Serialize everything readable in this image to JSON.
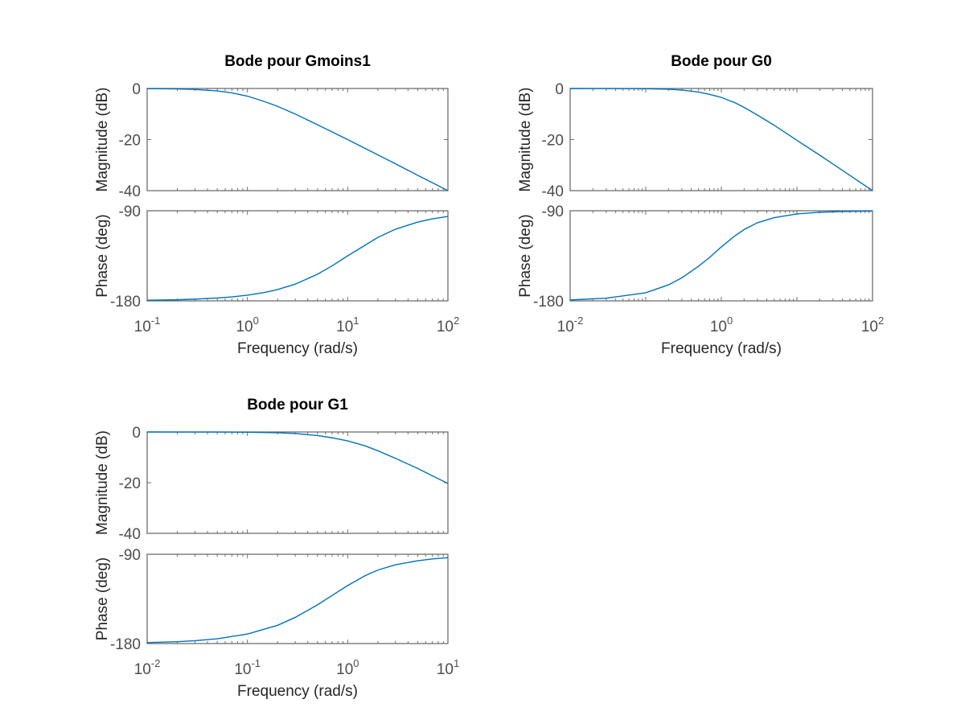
{
  "figure": {
    "background": "#ffffff",
    "axis_color": "#6e6e6e",
    "line_color": "#0072bd"
  },
  "chart_data": [
    {
      "type": "line",
      "title": "Bode pour Gmoins1",
      "xlabel": "Frequency  (rad/s)",
      "xscale": "log",
      "xlim": [
        0.1,
        100
      ],
      "xticks": [
        {
          "base": "10",
          "exp": "-1"
        },
        {
          "base": "10",
          "exp": "0"
        },
        {
          "base": "10",
          "exp": "1"
        },
        {
          "base": "10",
          "exp": "2"
        }
      ],
      "magnitude": {
        "ylabel": "Magnitude (dB)",
        "ylim": [
          -40,
          0
        ],
        "yticks": [
          "0",
          "-20",
          "-40"
        ],
        "x": [
          0.1,
          0.2,
          0.3,
          0.5,
          0.7,
          1,
          1.5,
          2,
          3,
          5,
          7,
          10,
          20,
          30,
          50,
          70,
          100
        ],
        "y": [
          -0.04,
          -0.17,
          -0.37,
          -0.97,
          -1.73,
          -3.0,
          -5.2,
          -7.0,
          -10.0,
          -14.2,
          -17.0,
          -20.0,
          -26.0,
          -29.5,
          -34.0,
          -36.9,
          -40.0
        ]
      },
      "phase": {
        "ylabel": "Phase (deg)",
        "ylim": [
          -180,
          -90
        ],
        "yticks": [
          "-90",
          "-180"
        ],
        "x": [
          0.1,
          0.2,
          0.3,
          0.5,
          0.7,
          1,
          1.5,
          2,
          3,
          5,
          7,
          10,
          20,
          30,
          50,
          70,
          100
        ],
        "y": [
          -179.4,
          -178.9,
          -178.3,
          -177.1,
          -176.0,
          -174.3,
          -171.5,
          -168.7,
          -163.3,
          -153.4,
          -145.0,
          -135.0,
          -116.6,
          -108.4,
          -101.3,
          -98.1,
          -95.7
        ]
      }
    },
    {
      "type": "line",
      "title": "Bode pour G0",
      "xlabel": "Frequency  (rad/s)",
      "xscale": "log",
      "xlim": [
        0.01,
        100
      ],
      "xticks": [
        {
          "base": "10",
          "exp": "-2"
        },
        {
          "base": "10",
          "exp": "0"
        },
        {
          "base": "10",
          "exp": "2"
        }
      ],
      "magnitude": {
        "ylabel": "Magnitude (dB)",
        "ylim": [
          -40,
          0
        ],
        "yticks": [
          "0",
          "-20",
          "-40"
        ],
        "x": [
          0.01,
          0.03,
          0.1,
          0.2,
          0.3,
          0.5,
          0.7,
          1,
          1.5,
          2,
          3,
          5,
          10,
          20,
          30,
          50,
          100
        ],
        "y": [
          0,
          -0.02,
          -0.09,
          -0.3,
          -0.6,
          -1.4,
          -2.3,
          -3.5,
          -5.5,
          -7.4,
          -10.4,
          -14.4,
          -20.3,
          -26.1,
          -29.6,
          -34.0,
          -40.0
        ]
      },
      "phase": {
        "ylabel": "Phase (deg)",
        "ylim": [
          -180,
          -90
        ],
        "yticks": [
          "-90",
          "-180"
        ],
        "x": [
          0.01,
          0.03,
          0.1,
          0.2,
          0.3,
          0.5,
          0.7,
          1,
          1.5,
          2,
          3,
          5,
          10,
          20,
          30,
          50,
          100
        ],
        "y": [
          -179.1,
          -177.3,
          -171.9,
          -164.0,
          -157.0,
          -145.4,
          -136.6,
          -126.1,
          -115.3,
          -108.8,
          -102.0,
          -96.9,
          -93.2,
          -91.5,
          -91.0,
          -90.6,
          -90.3
        ]
      }
    },
    {
      "type": "line",
      "title": "Bode pour G1",
      "xlabel": "Frequency  (rad/s)",
      "xscale": "log",
      "xlim": [
        0.01,
        10
      ],
      "xticks": [
        {
          "base": "10",
          "exp": "-2"
        },
        {
          "base": "10",
          "exp": "-1"
        },
        {
          "base": "10",
          "exp": "0"
        },
        {
          "base": "10",
          "exp": "1"
        }
      ],
      "magnitude": {
        "ylabel": "Magnitude (dB)",
        "ylim": [
          -40,
          0
        ],
        "yticks": [
          "0",
          "-20",
          "-40"
        ],
        "x": [
          0.01,
          0.02,
          0.03,
          0.05,
          0.1,
          0.2,
          0.3,
          0.5,
          0.7,
          1,
          1.5,
          2,
          3,
          5,
          7,
          10
        ],
        "y": [
          0,
          -0.01,
          -0.01,
          -0.02,
          -0.09,
          -0.3,
          -0.6,
          -1.4,
          -2.3,
          -3.5,
          -5.5,
          -7.4,
          -10.4,
          -14.4,
          -17.3,
          -20.3
        ]
      },
      "phase": {
        "ylabel": "Phase (deg)",
        "ylim": [
          -180,
          -90
        ],
        "yticks": [
          "-90",
          "-180"
        ],
        "x": [
          0.01,
          0.02,
          0.03,
          0.05,
          0.1,
          0.2,
          0.3,
          0.5,
          0.7,
          1,
          1.5,
          2,
          3,
          5,
          7,
          10
        ],
        "y": [
          -179.0,
          -178.1,
          -177.1,
          -175.2,
          -170.4,
          -161.6,
          -153.6,
          -141.0,
          -131.5,
          -121.5,
          -111.5,
          -105.9,
          -100.6,
          -96.5,
          -94.7,
          -93.4
        ]
      }
    }
  ]
}
